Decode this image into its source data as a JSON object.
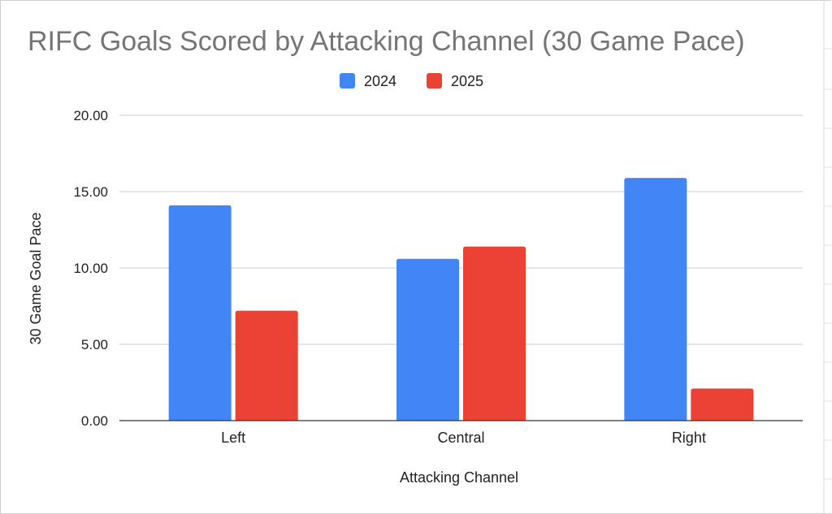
{
  "chart_data": {
    "type": "bar",
    "title": "RIFC Goals Scored by Attacking Channel (30 Game Pace)",
    "xlabel": "Attacking Channel",
    "ylabel": "30 Game Goal Pace",
    "categories": [
      "Left",
      "Central",
      "Right"
    ],
    "series": [
      {
        "name": "2024",
        "color": "#4285f4",
        "values": [
          14.1,
          10.6,
          15.9
        ]
      },
      {
        "name": "2025",
        "color": "#ea4335",
        "values": [
          7.2,
          11.4,
          2.1
        ]
      }
    ],
    "ylim": [
      0,
      20
    ],
    "yticks": [
      "0.00",
      "5.00",
      "10.00",
      "15.00",
      "20.00"
    ],
    "ytick_values": [
      0,
      5,
      10,
      15,
      20
    ],
    "grid": true,
    "legend_position": "top"
  }
}
